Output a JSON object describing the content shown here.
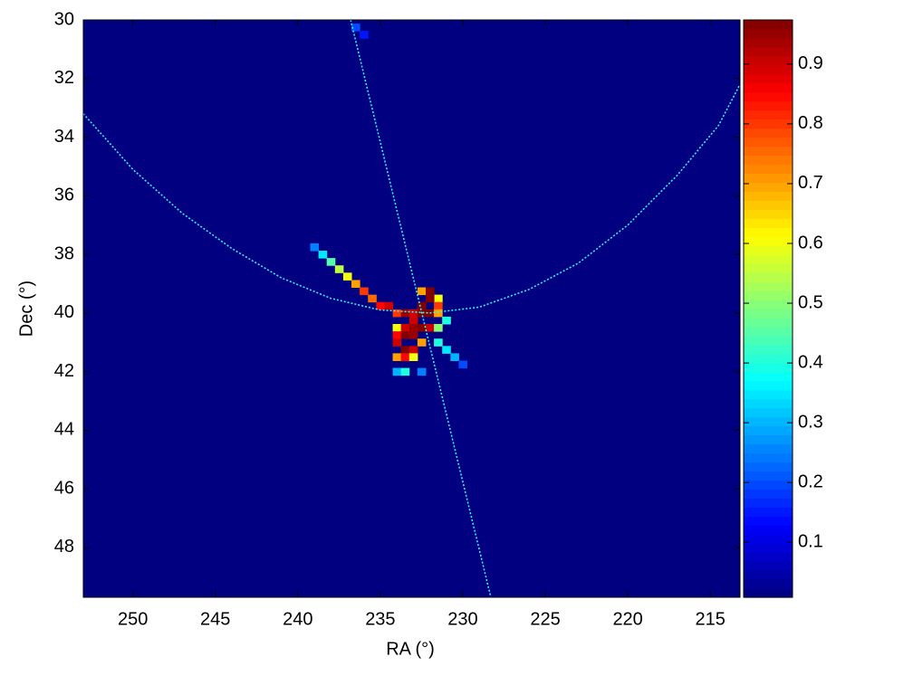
{
  "chart_data": {
    "type": "heatmap",
    "xlabel": "RA (°)",
    "ylabel": "Dec (°)",
    "xlim": [
      253,
      213.2
    ],
    "xticks": [
      250,
      245,
      240,
      235,
      230,
      225,
      220,
      215
    ],
    "ylim": [
      30,
      49.7
    ],
    "yticks": [
      30,
      32,
      34,
      36,
      38,
      40,
      42,
      44,
      46,
      48
    ],
    "clim": [
      0.008,
      0.974
    ],
    "cticks": [
      0.1,
      0.2,
      0.3,
      0.4,
      0.5,
      0.6,
      0.7,
      0.8,
      0.9
    ],
    "colormap": "jet",
    "x": [
      236.5,
      236,
      239,
      238.5,
      238,
      237.5,
      237,
      236.5,
      236,
      235.5,
      235,
      234.5,
      234,
      233.5,
      233,
      232.5,
      232,
      231.5,
      232.5,
      232,
      231.5,
      233,
      232.5,
      232,
      231.5,
      231,
      234,
      233.5,
      233,
      232.5,
      232,
      231.5,
      234,
      233.5,
      233,
      232.5,
      234,
      233.5,
      233,
      234,
      233.5,
      233,
      231.5,
      231,
      230.5,
      230,
      234,
      233.5,
      232.5
    ],
    "y": [
      30.25,
      30.5,
      37.75,
      38,
      38.25,
      38.5,
      38.75,
      39,
      39.25,
      39.5,
      39.75,
      39.75,
      40,
      40,
      40,
      39.25,
      39.25,
      39.5,
      39.75,
      39.5,
      39.75,
      40.25,
      40,
      40,
      40,
      40.25,
      40.5,
      40.5,
      40.5,
      40.5,
      40.5,
      40.5,
      40.75,
      40.75,
      40.75,
      41,
      41,
      41.25,
      41.25,
      41.5,
      41.5,
      41.5,
      41,
      41.25,
      41.5,
      41.75,
      42,
      42,
      42
    ],
    "values": [
      0.2,
      0.15,
      0.25,
      0.35,
      0.45,
      0.55,
      0.6,
      0.7,
      0.8,
      0.75,
      0.85,
      0.9,
      0.8,
      0.95,
      0.9,
      0.7,
      0.97,
      0.6,
      0.97,
      0.97,
      0.8,
      0.9,
      0.97,
      0.97,
      0.7,
      0.4,
      0.6,
      0.9,
      0.95,
      0.97,
      0.9,
      0.5,
      0.85,
      0.97,
      0.95,
      0.7,
      0.9,
      0.97,
      0.9,
      0.7,
      0.85,
      0.6,
      0.4,
      0.35,
      0.3,
      0.2,
      0.3,
      0.4,
      0.25
    ],
    "overlays": [
      {
        "color": "#33ffff",
        "x": [
          253,
          250,
          247,
          244,
          241,
          238,
          235,
          232,
          229,
          226,
          223,
          220,
          217,
          214.5,
          213.2
        ],
        "y": [
          33.2,
          35.1,
          36.6,
          37.8,
          38.8,
          39.5,
          39.9,
          40,
          39.8,
          39.2,
          38.3,
          37,
          35.3,
          33.6,
          32.2
        ]
      },
      {
        "color": "#33ffff",
        "x": [
          236.8,
          228.3
        ],
        "y": [
          30,
          49.7
        ]
      }
    ]
  }
}
